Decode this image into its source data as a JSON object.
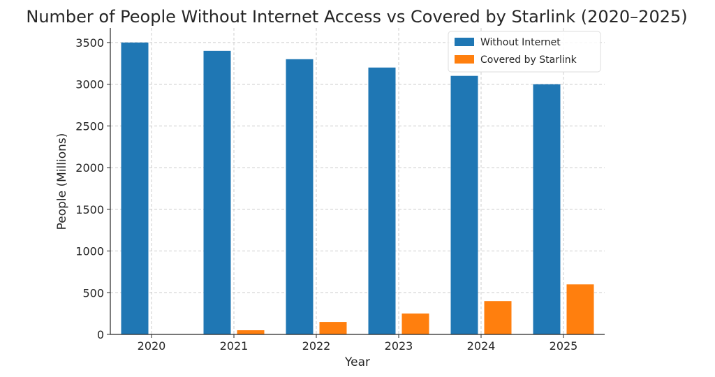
{
  "chart_data": {
    "type": "bar",
    "title": "Number of People Without Internet Access vs Covered by Starlink (2020–2025)",
    "xlabel": "Year",
    "ylabel": "People (Millions)",
    "categories": [
      "2020",
      "2021",
      "2022",
      "2023",
      "2024",
      "2025"
    ],
    "series": [
      {
        "name": "Without Internet",
        "color": "#1f77b4",
        "values": [
          3500,
          3400,
          3300,
          3200,
          3100,
          3000
        ]
      },
      {
        "name": "Covered by Starlink",
        "color": "#ff7f0e",
        "values": [
          0,
          50,
          150,
          250,
          400,
          600
        ]
      }
    ],
    "yticks": [
      0,
      500,
      1000,
      1500,
      2000,
      2500,
      3000,
      3500
    ],
    "ylim": [
      0,
      3675
    ],
    "grid": true,
    "legend_position": "top-right"
  }
}
